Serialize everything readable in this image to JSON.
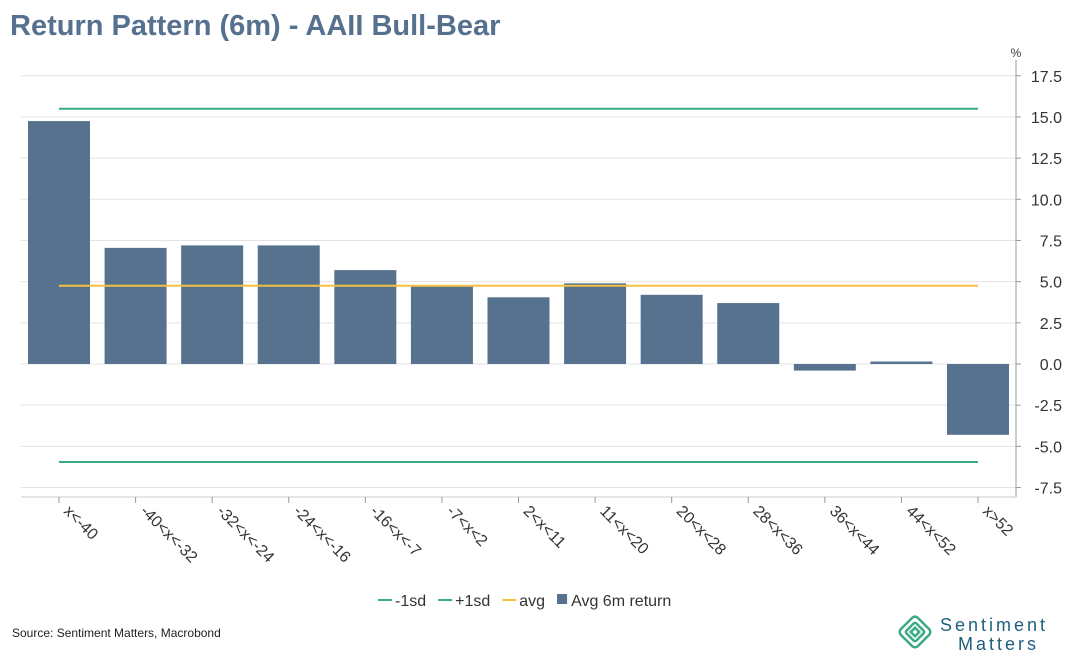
{
  "title": "Return Pattern (6m) - AAII Bull-Bear",
  "source": "Source: Sentiment Matters, Macrobond",
  "logo": {
    "line1": "Sentiment",
    "line2": "Matters"
  },
  "colors": {
    "bar": "#56728f",
    "sd": "#3aaa85",
    "avg": "#f4c042",
    "grid": "#e3e3e3"
  },
  "chart_data": {
    "type": "bar",
    "title": "Return Pattern (6m) - AAII Bull-Bear",
    "ylabel": "%",
    "ylim": [
      -8.5,
      19
    ],
    "yticks": [
      17.5,
      15.0,
      12.5,
      10.0,
      7.5,
      5.0,
      2.5,
      0.0,
      -2.5,
      -5.0,
      -7.5
    ],
    "ytick_labels": [
      "17.5",
      "15.0",
      "12.5",
      "10.0",
      "7.5",
      "5.0",
      "2.5",
      "0.0",
      "-2.5",
      "-5.0",
      "-7.5"
    ],
    "categories": [
      "x<-40",
      "-40<x<-32",
      "-32<x<-24",
      "-24<x<-16",
      "-16<x<-7",
      "-7<x<2",
      "2<x<11",
      "11<x<20",
      "20<x<28",
      "28<x<36",
      "36<x<44",
      "44<x<52",
      "x>52"
    ],
    "series": [
      {
        "name": "Avg 6m return",
        "type": "bar",
        "values": [
          14.75,
          7.05,
          7.2,
          7.2,
          5.7,
          4.7,
          4.05,
          4.9,
          4.2,
          3.7,
          -0.4,
          0.15,
          -4.3
        ]
      },
      {
        "name": "-1sd",
        "type": "line",
        "value": -5.95
      },
      {
        "name": "+1sd",
        "type": "line",
        "value": 15.5
      },
      {
        "name": "avg",
        "type": "line",
        "value": 4.75
      }
    ],
    "legend": [
      "-1sd",
      "+1sd",
      "avg",
      "Avg 6m return"
    ],
    "legend_position": "bottom",
    "grid": true
  }
}
